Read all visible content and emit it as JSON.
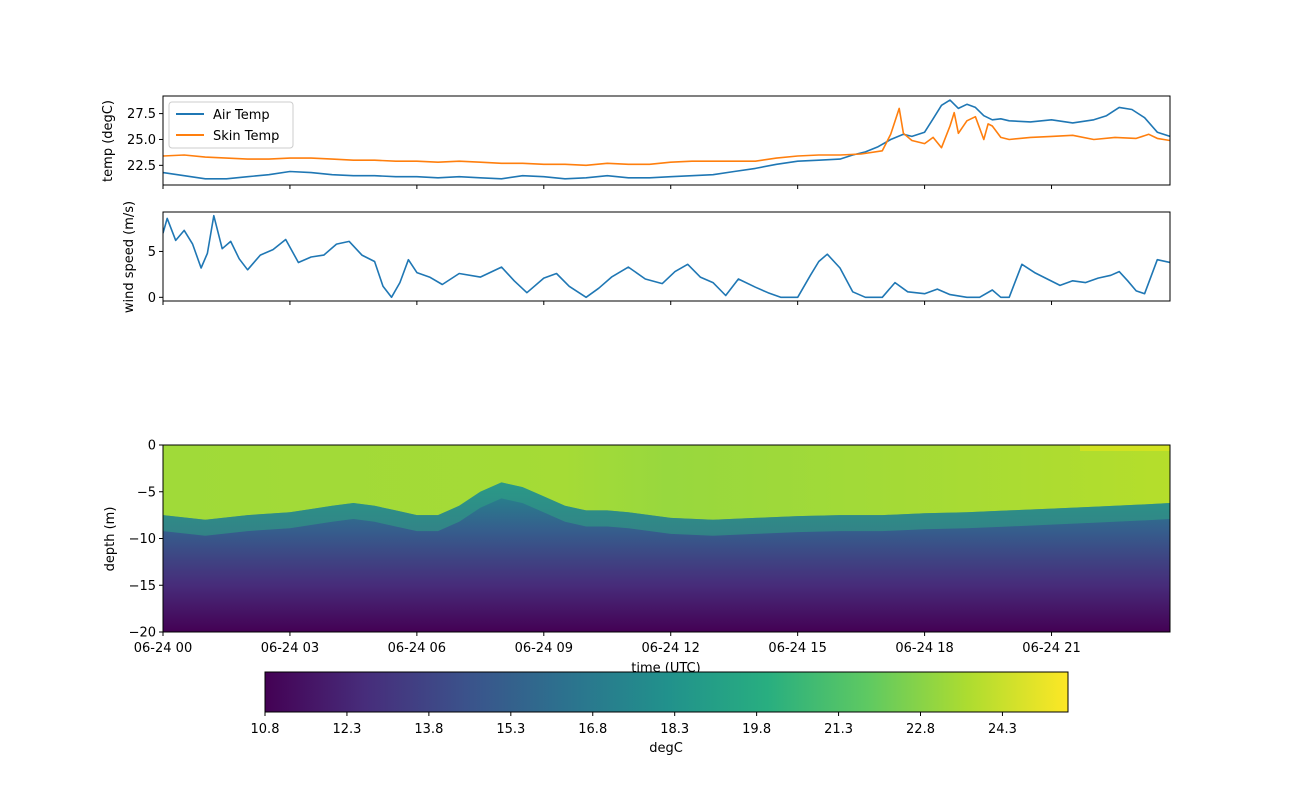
{
  "chart_data": [
    {
      "type": "line",
      "ylabel": "temp (degC)",
      "ylim": [
        20.6,
        29.2
      ],
      "xlim_hours": [
        0,
        23.8
      ],
      "yticks": [
        22.5,
        25.0,
        27.5
      ],
      "ytick_labels": [
        "22.5",
        "25.0",
        "27.5"
      ],
      "legend": {
        "placement": "top-left",
        "entries": [
          "Air Temp",
          "Skin Temp"
        ]
      },
      "series": [
        {
          "name": "Air Temp",
          "color": "#1f77b4",
          "x": [
            0,
            0.5,
            1,
            1.5,
            2,
            2.5,
            3,
            3.5,
            4,
            4.5,
            5,
            5.5,
            6,
            6.5,
            7,
            7.5,
            8,
            8.5,
            9,
            9.5,
            10,
            10.5,
            11,
            11.5,
            12,
            12.5,
            13,
            13.5,
            14,
            14.5,
            15,
            15.5,
            16,
            16.3,
            16.6,
            16.9,
            17.2,
            17.5,
            17.7,
            18,
            18.2,
            18.4,
            18.6,
            18.8,
            19,
            19.2,
            19.4,
            19.6,
            19.8,
            20,
            20.5,
            21,
            21.5,
            22,
            22.3,
            22.6,
            22.9,
            23.2,
            23.5,
            23.8
          ],
          "y": [
            21.8,
            21.5,
            21.2,
            21.2,
            21.4,
            21.6,
            21.9,
            21.8,
            21.6,
            21.5,
            21.5,
            21.4,
            21.4,
            21.3,
            21.4,
            21.3,
            21.2,
            21.5,
            21.4,
            21.2,
            21.3,
            21.5,
            21.3,
            21.3,
            21.4,
            21.5,
            21.6,
            21.9,
            22.2,
            22.6,
            22.9,
            23.0,
            23.1,
            23.5,
            23.8,
            24.3,
            25.0,
            25.5,
            25.3,
            25.7,
            27.0,
            28.3,
            28.8,
            28.0,
            28.4,
            28.1,
            27.3,
            26.9,
            27.0,
            26.8,
            26.7,
            26.9,
            26.6,
            26.9,
            27.3,
            28.1,
            27.9,
            27.1,
            25.7,
            25.3
          ]
        },
        {
          "name": "Skin Temp",
          "color": "#ff7f0e",
          "x": [
            0,
            0.5,
            1,
            1.5,
            2,
            2.5,
            3,
            3.5,
            4,
            4.5,
            5,
            5.5,
            6,
            6.5,
            7,
            7.5,
            8,
            8.5,
            9,
            9.5,
            10,
            10.5,
            11,
            11.5,
            12,
            12.5,
            13,
            13.5,
            14,
            14.5,
            15,
            15.5,
            16,
            16.5,
            17,
            17.2,
            17.4,
            17.5,
            17.7,
            18,
            18.2,
            18.4,
            18.6,
            18.7,
            18.8,
            19,
            19.2,
            19.4,
            19.5,
            19.6,
            19.8,
            20,
            20.5,
            21,
            21.5,
            22,
            22.5,
            23,
            23.3,
            23.5,
            23.8
          ],
          "y": [
            23.4,
            23.5,
            23.3,
            23.2,
            23.1,
            23.1,
            23.2,
            23.2,
            23.1,
            23.0,
            23.0,
            22.9,
            22.9,
            22.8,
            22.9,
            22.8,
            22.7,
            22.7,
            22.6,
            22.6,
            22.5,
            22.7,
            22.6,
            22.6,
            22.8,
            22.9,
            22.9,
            22.9,
            22.9,
            23.2,
            23.4,
            23.5,
            23.5,
            23.6,
            23.9,
            25.5,
            28.0,
            25.6,
            24.9,
            24.6,
            25.2,
            24.2,
            26.3,
            27.6,
            25.6,
            26.8,
            27.2,
            25.0,
            26.5,
            26.3,
            25.2,
            25.0,
            25.2,
            25.3,
            25.4,
            25.0,
            25.2,
            25.1,
            25.5,
            25.1,
            24.9
          ]
        }
      ]
    },
    {
      "type": "line",
      "ylabel": "wind speed (m/s)",
      "ylim": [
        -0.4,
        9.3
      ],
      "xlim_hours": [
        0,
        23.8
      ],
      "yticks": [
        0,
        5
      ],
      "ytick_labels": [
        "0",
        "5"
      ],
      "series": [
        {
          "name": "",
          "color": "#1f77b4",
          "x": [
            0,
            0.1,
            0.3,
            0.5,
            0.7,
            0.9,
            1.05,
            1.2,
            1.4,
            1.6,
            1.8,
            2.0,
            2.3,
            2.6,
            2.9,
            3.2,
            3.5,
            3.8,
            4.1,
            4.4,
            4.7,
            5.0,
            5.2,
            5.4,
            5.6,
            5.8,
            6.0,
            6.3,
            6.6,
            7.0,
            7.5,
            8.0,
            8.3,
            8.6,
            9.0,
            9.3,
            9.6,
            10.0,
            10.3,
            10.6,
            11.0,
            11.4,
            11.8,
            12.1,
            12.4,
            12.7,
            13.0,
            13.3,
            13.6,
            14.0,
            14.3,
            14.6,
            15.0,
            15.3,
            15.5,
            15.7,
            16.0,
            16.3,
            16.6,
            17.0,
            17.3,
            17.6,
            18.0,
            18.3,
            18.6,
            19.0,
            19.3,
            19.6,
            19.8,
            20.0,
            20.3,
            20.6,
            20.9,
            21.2,
            21.5,
            21.8,
            22.1,
            22.4,
            22.6,
            22.8,
            23.0,
            23.2,
            23.5,
            23.8
          ],
          "y": [
            7.0,
            8.6,
            6.2,
            7.3,
            5.8,
            3.2,
            4.8,
            8.9,
            5.3,
            6.1,
            4.2,
            3.0,
            4.6,
            5.2,
            6.3,
            3.8,
            4.4,
            4.6,
            5.8,
            6.1,
            4.6,
            3.9,
            1.2,
            0,
            1.6,
            4.1,
            2.7,
            2.2,
            1.4,
            2.6,
            2.2,
            3.3,
            1.8,
            0.5,
            2.1,
            2.6,
            1.2,
            0,
            1.0,
            2.2,
            3.3,
            2.0,
            1.5,
            2.8,
            3.6,
            2.2,
            1.6,
            0.2,
            2.0,
            1.1,
            0.5,
            0,
            0,
            2.4,
            3.9,
            4.7,
            3.2,
            0.6,
            0,
            0,
            1.6,
            0.6,
            0.4,
            0.9,
            0.3,
            0,
            0,
            0.8,
            0,
            0,
            3.6,
            2.7,
            2.0,
            1.3,
            1.8,
            1.6,
            2.1,
            2.4,
            2.8,
            1.8,
            0.7,
            0.4,
            4.1,
            3.8
          ]
        }
      ]
    },
    {
      "type": "heatmap",
      "ylabel": "depth (m)",
      "xlabel": "time (UTC)",
      "ylim": [
        -20,
        0
      ],
      "xlim_hours": [
        0,
        23.8
      ],
      "yticks": [
        0,
        -5,
        -10,
        -15,
        -20
      ],
      "ytick_labels": [
        "0",
        "−5",
        "−10",
        "−15",
        "−20"
      ],
      "xticks_hours": [
        0,
        3,
        6,
        9,
        12,
        15,
        18,
        21
      ],
      "xtick_labels": [
        "06-24 00",
        "06-24 03",
        "06-24 06",
        "06-24 09",
        "06-24 12",
        "06-24 15",
        "06-24 18",
        "06-24 21"
      ],
      "colormap": "viridis",
      "thermocline_depth": {
        "x": [
          0,
          1,
          2,
          3,
          4,
          4.5,
          5,
          5.5,
          6,
          6.5,
          7,
          7.5,
          8,
          8.5,
          9,
          9.5,
          10,
          10.5,
          11,
          12,
          13,
          14,
          15,
          16,
          17,
          18,
          19,
          20,
          21,
          22,
          23,
          23.8
        ],
        "y": [
          -7.5,
          -8.0,
          -7.5,
          -7.2,
          -6.5,
          -6.2,
          -6.5,
          -7.0,
          -7.5,
          -7.5,
          -6.5,
          -5.0,
          -4.0,
          -4.5,
          -5.5,
          -6.5,
          -7.0,
          -7.0,
          -7.2,
          -7.8,
          -8.0,
          -7.8,
          -7.6,
          -7.5,
          -7.5,
          -7.3,
          -7.2,
          -7.0,
          -6.8,
          -6.6,
          -6.4,
          -6.2
        ]
      },
      "colorbar": {
        "label": "degC",
        "vmin": 10.8,
        "vmax": 25.5,
        "ticks": [
          10.8,
          12.3,
          13.8,
          15.3,
          16.8,
          18.3,
          19.8,
          21.3,
          22.8,
          24.3
        ],
        "tick_labels": [
          "10.8",
          "12.3",
          "13.8",
          "15.3",
          "16.8",
          "18.3",
          "19.8",
          "21.3",
          "22.8",
          "24.3"
        ]
      }
    }
  ]
}
